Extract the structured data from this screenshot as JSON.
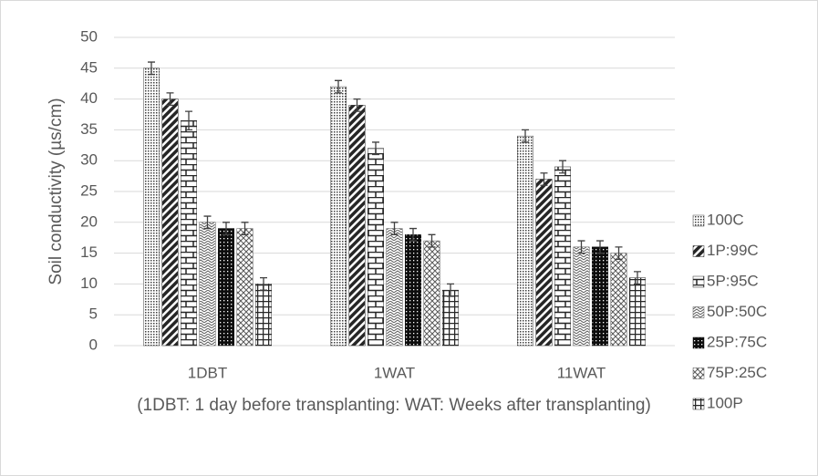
{
  "chart_data": {
    "type": "bar",
    "y_label": "Soil conductivity (µs/cm)",
    "x_label": "(1DBT: 1 day before transplanting: WAT: Weeks after transplanting)",
    "categories": [
      "1DBT",
      "1WAT",
      "11WAT"
    ],
    "ylim": [
      0,
      50
    ],
    "yticks": [
      0,
      5,
      10,
      15,
      20,
      25,
      30,
      35,
      40,
      45,
      50
    ],
    "grid": true,
    "legend": "right",
    "series": [
      {
        "name": "100C",
        "color": "#404040",
        "pattern": "dots",
        "values": [
          45,
          42,
          34
        ],
        "errors": [
          1,
          1,
          1
        ]
      },
      {
        "name": "1P:99C",
        "color": "#262626",
        "pattern": "diagonal",
        "values": [
          40,
          39,
          27
        ],
        "errors": [
          1,
          1,
          1
        ]
      },
      {
        "name": "5P:95C",
        "color": "#262626",
        "pattern": "brick",
        "values": [
          36.5,
          32,
          29
        ],
        "errors": [
          1.5,
          1,
          1
        ]
      },
      {
        "name": "50P:50C",
        "color": "#595959",
        "pattern": "wave",
        "values": [
          20,
          19,
          16
        ],
        "errors": [
          1,
          1,
          1
        ]
      },
      {
        "name": "25P:75C",
        "color": "#0d0d0d",
        "pattern": "darkdots",
        "values": [
          19,
          18,
          16
        ],
        "errors": [
          1,
          1,
          1
        ]
      },
      {
        "name": "75P:25C",
        "color": "#595959",
        "pattern": "cross",
        "values": [
          19,
          17,
          15
        ],
        "errors": [
          1,
          1,
          1
        ]
      },
      {
        "name": "100P",
        "color": "#262626",
        "pattern": "grid",
        "values": [
          10,
          9,
          11
        ],
        "errors": [
          1,
          1,
          1
        ]
      }
    ]
  }
}
